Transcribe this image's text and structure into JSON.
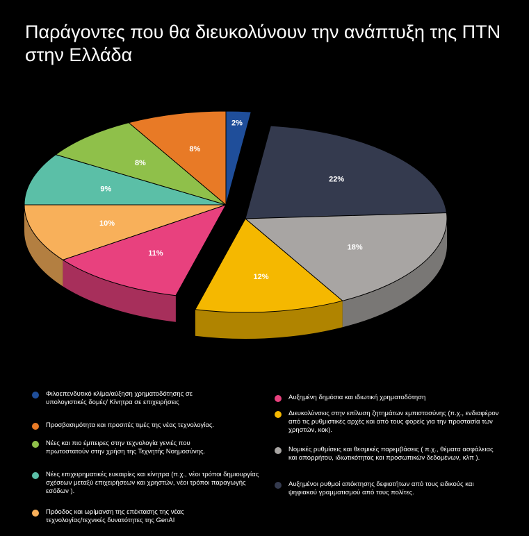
{
  "title": "Παράγοντες που θα διευκολύνουν την ανάπτυξη της ΠΤΝ στην Ελλάδα",
  "chart_data": {
    "type": "pie",
    "title": "Παράγοντες που θα διευκολύνουν την ανάπτυξη της ΠΤΝ στην Ελλάδα",
    "slices": [
      {
        "label": "Φιλοεπενδυτικό κλίμα/αύξηση χρηματοδότησης σε υπολογιστικές δομές/ Κίνητρα σε επιχειρήσεις",
        "value": 2,
        "display": "2%",
        "color": "#1f4e9a",
        "exploded": false
      },
      {
        "label": "Αυξημένοι ρυθμοί απόκτησης δεφιοτήτων από τους ειδικούς και ψηφιακού γραμματισμού από τους πολίτες.",
        "value": 22,
        "display": "22%",
        "color": "#343a4e",
        "exploded": true
      },
      {
        "label": "Νομικές ρυθμίσεις και θεσμικές παρεμβάσεις ( π.χ., θέματα ασφάλειας και απορρήτου, ιδιωτικότητας και προσωπικών δεδομένων, κλπ ).",
        "value": 18,
        "display": "18%",
        "color": "#a8a5a3",
        "exploded": true
      },
      {
        "label": "Διευκολύνσεις στην επίλυση ζητημάτων εμπιστοσύνης (π.χ., ενδιαφέρον από τις ρυθμιστικές αρχές και από τους φορείς για την προστασία των χρηστών, κοκ).",
        "value": 12,
        "display": "12%",
        "color": "#f5b800",
        "exploded": true
      },
      {
        "label": "Αυξημένη δημόσια και ιδιωτική χρηματοδότηση",
        "value": 11,
        "display": "11%",
        "color": "#e8417e",
        "exploded": false
      },
      {
        "label": "Πρόοδος και ωρίμανση της επέκτασης της νέας τεχνολογίας/τεχνικές δυνατότητες της GenAI",
        "value": 10,
        "display": "10%",
        "color": "#f8b05a",
        "exploded": false
      },
      {
        "label": "Νέες επιχειρηματικές ευκαιρίες και κίνητρα (π.χ., νέοι τρόποι δημιουργίας σχέσεων μεταξύ επιχειρήσεων και χρηστών, νέοι τρόποι παραγωγής εσόδων ).",
        "value": 9,
        "display": "9%",
        "color": "#5bbfa7",
        "exploded": false
      },
      {
        "label": "Νέες και πιο έμπειρες στην τεχνολογία γενιές που πρωτοστατούν στην χρήση της Τεχνητής Νοημοσύνης.",
        "value": 8,
        "display": "8%",
        "color": "#8fc04a",
        "exploded": false
      },
      {
        "label": "Προσβασιμότητα και προσιτές τιμές της νέας τεχνολογίας.",
        "value": 8,
        "display": "8%",
        "color": "#e87a26",
        "exploded": false
      }
    ]
  },
  "legend_left": [
    {
      "label": "Φιλοεπενδυτικό κλίμα/αύξηση χρηματοδότησης σε υπολογιστικές δομές/ Κίνητρα σε επιχειρήσεις",
      "color": "#1f4e9a"
    },
    {
      "label": "Προσβασιμότητα και προσιτές τιμές της νέας τεχνολογίας.",
      "color": "#e87a26"
    },
    {
      "label": "Νέες και πιο έμπειρες στην τεχνολογία γενιές που πρωτοστατούν στην χρήση της Τεχνητής Νοημοσύνης.",
      "color": "#8fc04a"
    },
    {
      "label": "Νέες επιχειρηματικές ευκαιρίες και κίνητρα (π.χ., νέοι τρόποι δημιουργίας σχέσεων μεταξύ επιχειρήσεων και χρηστών, νέοι τρόποι παραγωγής εσόδων ).",
      "color": "#5bbfa7"
    },
    {
      "label": "Πρόοδος και ωρίμανση της επέκτασης της νέας τεχνολογίας/τεχνικές δυνατότητες της GenAI",
      "color": "#f8b05a"
    }
  ],
  "legend_right": [
    {
      "label": "Αυξημένη δημόσια και ιδιωτική χρηματοδότηση",
      "color": "#e8417e"
    },
    {
      "label": "Διευκολύνσεις στην επίλυση ζητημάτων εμπιστοσύνης (π.χ., ενδιαφέρον από τις ρυθμιστικές αρχές και από τους φορείς για την προστασία των χρηστών, κοκ).",
      "color": "#f5b800"
    },
    {
      "label": "Νομικές ρυθμίσεις και θεσμικές παρεμβάσεις ( π.χ., θέματα ασφάλειας και απορρήτου, ιδιωτικότητας και προσωπικών δεδομένων, κλπ ).",
      "color": "#a8a5a3"
    },
    {
      "label": "Αυξημένοι ρυθμοί απόκτησης δεφιοτήτων από τους ειδικούς και ψηφιακού γραμματισμού από τους πολίτες.",
      "color": "#343a4e"
    }
  ]
}
